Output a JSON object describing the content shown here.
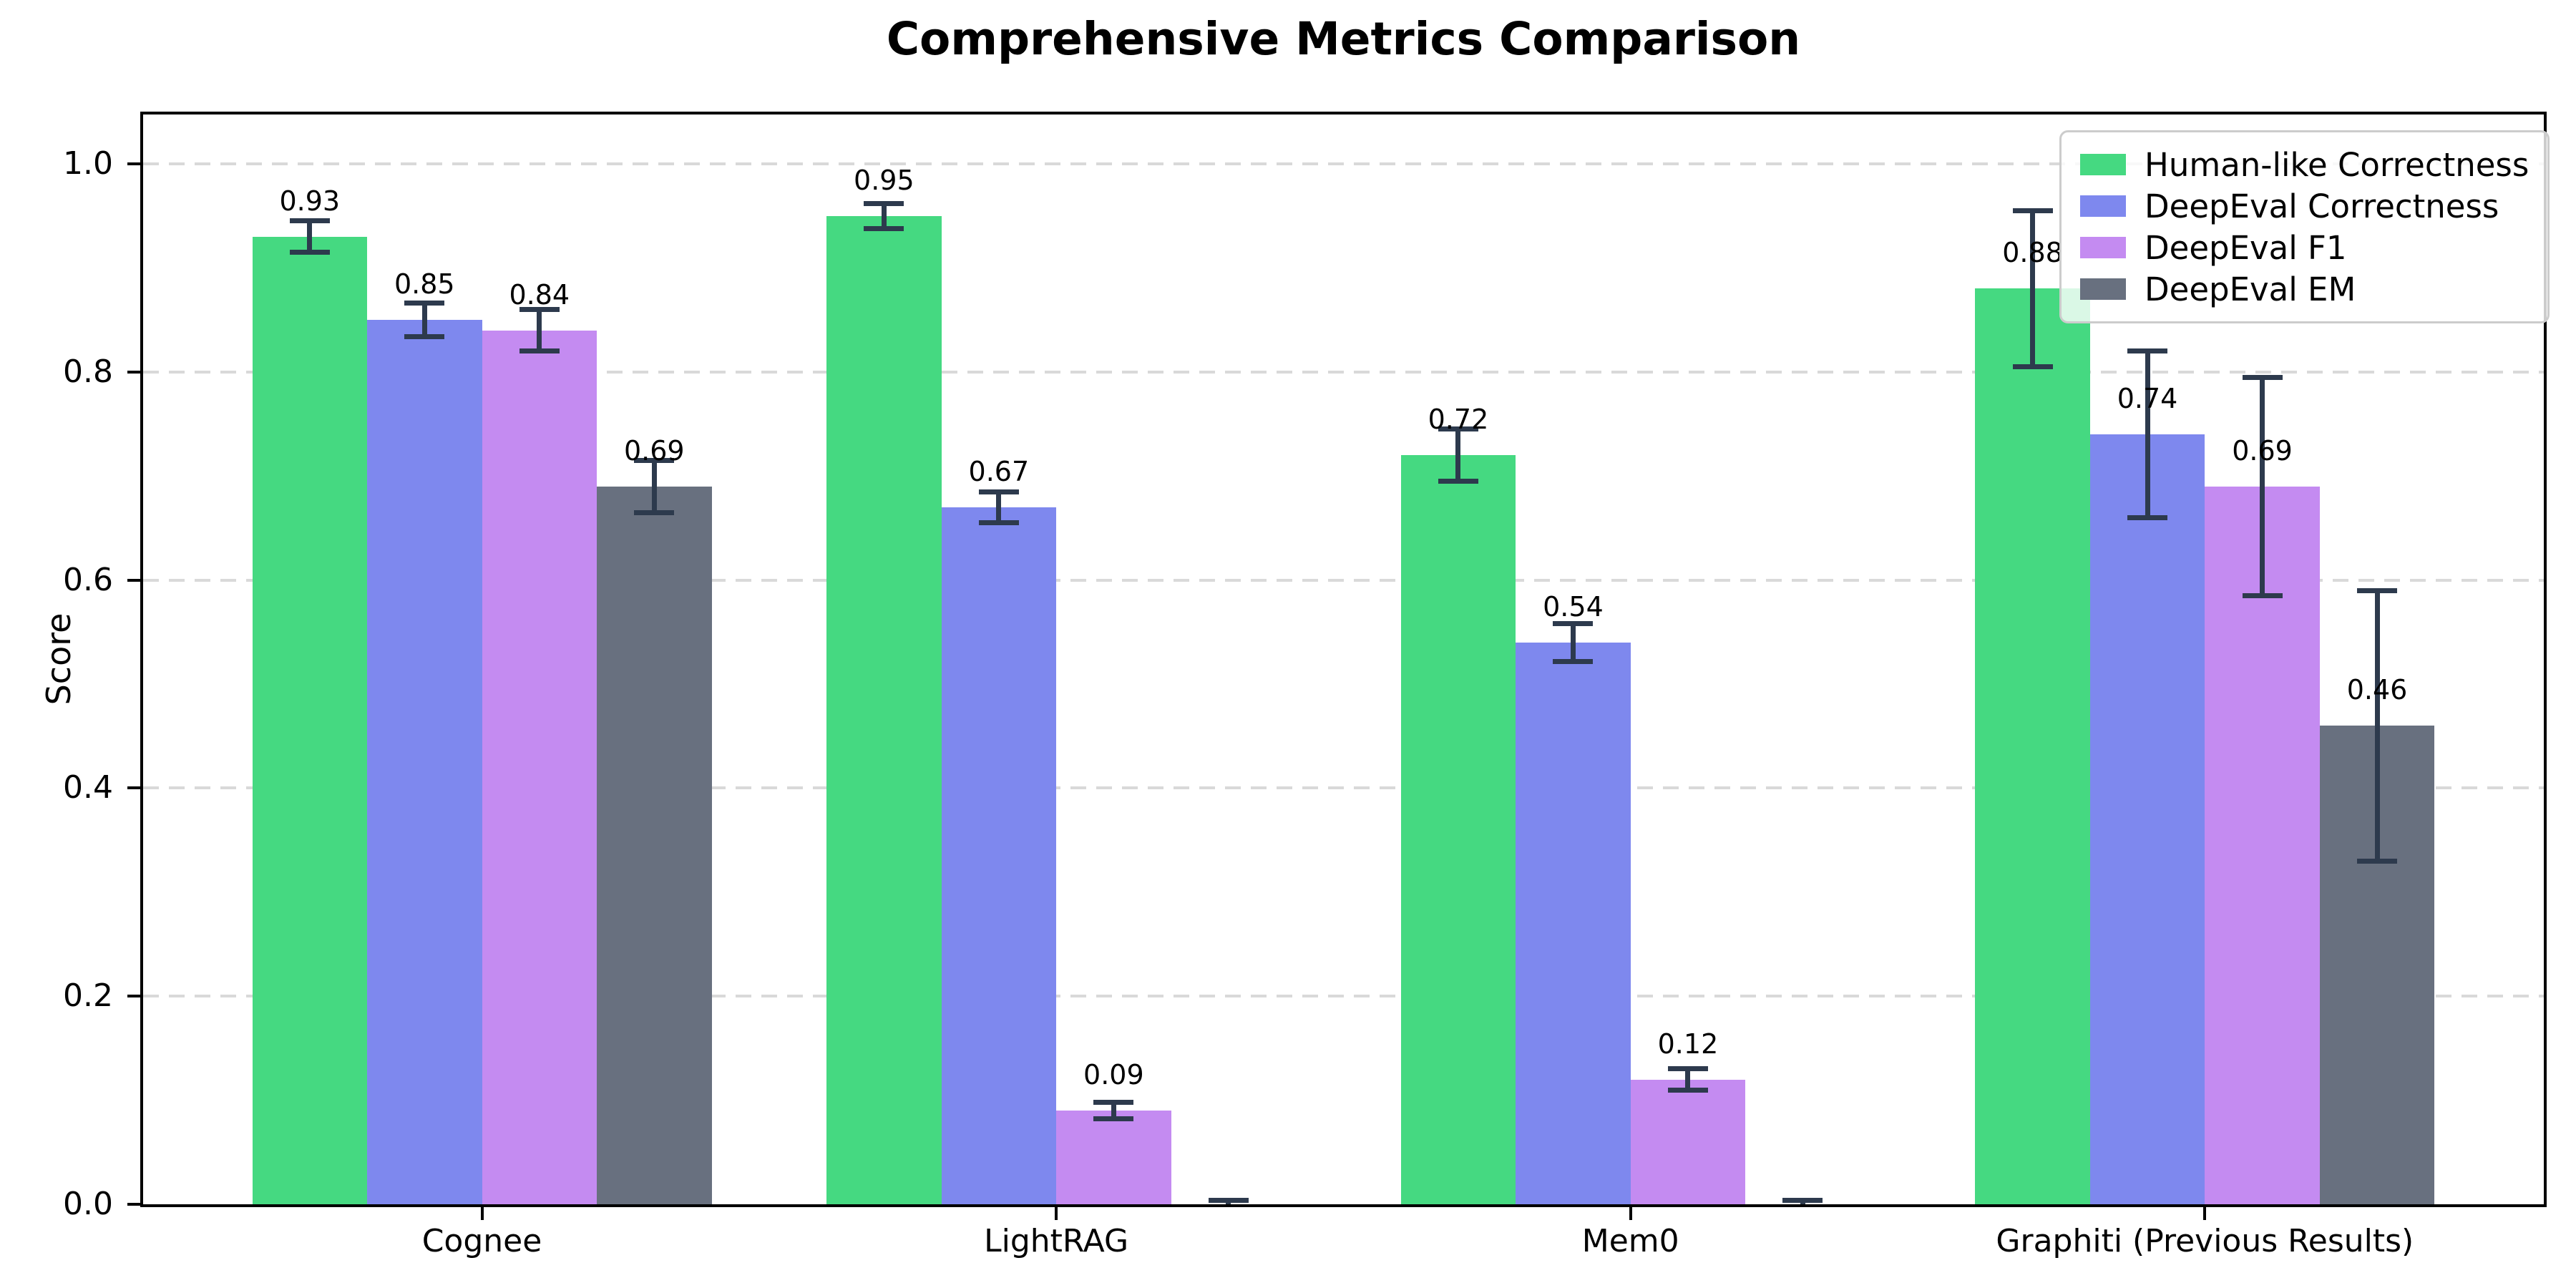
{
  "title": "Comprehensive Metrics Comparison",
  "chart_data": {
    "type": "bar",
    "title": "Comprehensive Metrics Comparison",
    "xlabel": "",
    "ylabel": "Score",
    "categories": [
      "Cognee",
      "LightRAG",
      "Mem0",
      "Graphiti (Previous Results)"
    ],
    "series": [
      {
        "name": "Human-like Correctness",
        "color": "#45d981",
        "values": [
          0.93,
          0.95,
          0.72,
          0.88
        ],
        "errors": [
          0.015,
          0.012,
          0.025,
          0.075
        ],
        "bar_labels": [
          "0.93",
          "0.95",
          "0.72",
          "0.88"
        ]
      },
      {
        "name": "DeepEval Correctness",
        "color": "#7e88ee",
        "values": [
          0.85,
          0.67,
          0.54,
          0.74
        ],
        "errors": [
          0.016,
          0.015,
          0.018,
          0.08
        ],
        "bar_labels": [
          "0.85",
          "0.67",
          "0.54",
          "0.74"
        ]
      },
      {
        "name": "DeepEval F1",
        "color": "#c48bf1",
        "values": [
          0.84,
          0.09,
          0.12,
          0.69
        ],
        "errors": [
          0.02,
          0.008,
          0.01,
          0.105
        ],
        "bar_labels": [
          "0.84",
          "0.09",
          "0.12",
          "0.69"
        ]
      },
      {
        "name": "DeepEval EM",
        "color": "#68707f",
        "values": [
          0.69,
          0.0,
          0.0,
          0.46
        ],
        "errors": [
          0.025,
          0.004,
          0.004,
          0.13
        ],
        "bar_labels": [
          "0.69",
          null,
          null,
          "0.46"
        ]
      }
    ],
    "ylim": [
      0.0,
      1.047
    ],
    "yticks": [
      0.0,
      0.2,
      0.4,
      0.6,
      0.8,
      1.0
    ],
    "ytick_labels": [
      "0.0",
      "0.2",
      "0.4",
      "0.6",
      "0.8",
      "1.0"
    ],
    "grid": "horizontal-dashed",
    "grid_color": "#d9d9d9",
    "error_bar_color": "#2d3a4d",
    "legend_position": "upper right",
    "bar_label_format": "%.2f"
  }
}
